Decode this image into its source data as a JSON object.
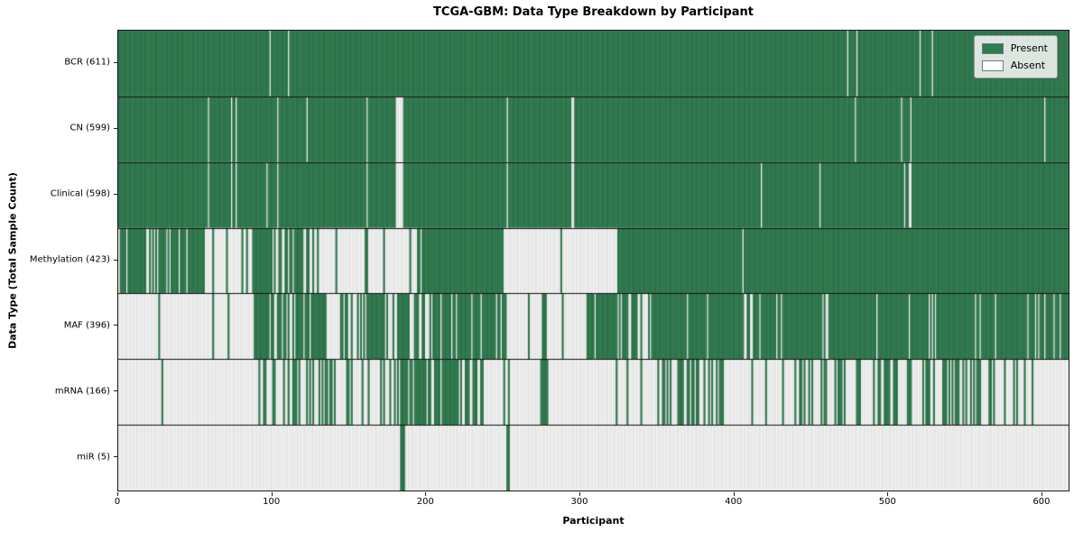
{
  "title": "TCGA-GBM: Data Type Breakdown by Participant",
  "x_axis": {
    "label": "Participant",
    "ticks": [
      0,
      100,
      200,
      300,
      400,
      500,
      600
    ]
  },
  "y_axis": {
    "label": "Data Type (Total Sample Count)"
  },
  "legend": {
    "items": [
      {
        "label": "Present",
        "color": "#2e7d4f"
      },
      {
        "label": "Absent",
        "color": "#ffffff"
      }
    ]
  },
  "colors": {
    "present": "#2e7d4f",
    "absent": "#ffffff",
    "bar_edge": "rgba(40,40,40,0.28)",
    "separator": "#111111",
    "legend_bg": "rgba(236,239,236,0.92)"
  },
  "chart_data": {
    "type": "heatmap",
    "title": "TCGA-GBM: Data Type Breakdown by Participant",
    "xlabel": "Participant",
    "ylabel": "Data Type (Total Sample Count)",
    "x_range": [
      0,
      617
    ],
    "n_participants": 617,
    "legend_position": "upper right",
    "legend_entries": [
      "Present",
      "Absent"
    ],
    "value_encoding": {
      "present": 1,
      "absent": 0
    },
    "rows": [
      {
        "label": "BCR (611)",
        "name": "BCR",
        "total_present": 611,
        "mode": "present_except",
        "absent_at": [
          98,
          110,
          473,
          479,
          520,
          528
        ]
      },
      {
        "label": "CN (599)",
        "name": "CN",
        "total_present": 599,
        "mode": "present_except",
        "absent_at": [
          58,
          73,
          76,
          103,
          122,
          161,
          180,
          181,
          182,
          183,
          184,
          252,
          294,
          295,
          478,
          508,
          514,
          601
        ]
      },
      {
        "label": "Clinical (598)",
        "name": "Clinical",
        "total_present": 598,
        "mode": "present_except",
        "absent_at": [
          58,
          73,
          76,
          96,
          103,
          161,
          180,
          181,
          182,
          183,
          184,
          252,
          294,
          295,
          417,
          455,
          510,
          513,
          514
        ]
      },
      {
        "label": "Methylation (423)",
        "name": "Methylation",
        "total_present": 423,
        "mode": "segments",
        "segments": [
          [
            0,
            55,
            0.78
          ],
          [
            55,
            87,
            0.15
          ],
          [
            87,
            100,
            0.9
          ],
          [
            100,
            108,
            0.3
          ],
          [
            108,
            123,
            0.9
          ],
          [
            123,
            194,
            0.12
          ],
          [
            194,
            250,
            0.96
          ],
          [
            250,
            304,
            0.06
          ],
          [
            304,
            324,
            0.0
          ],
          [
            324,
            405,
            1.0
          ],
          [
            405,
            406,
            0.0
          ],
          [
            406,
            617,
            1.0
          ]
        ]
      },
      {
        "label": "MAF (396)",
        "name": "MAF",
        "total_present": 396,
        "mode": "segments",
        "segments": [
          [
            0,
            18,
            0.0
          ],
          [
            18,
            32,
            0.2
          ],
          [
            32,
            87,
            0.02
          ],
          [
            87,
            100,
            0.85
          ],
          [
            100,
            123,
            0.5
          ],
          [
            123,
            135,
            0.8
          ],
          [
            135,
            145,
            0.05
          ],
          [
            145,
            152,
            0.9
          ],
          [
            152,
            157,
            0.1
          ],
          [
            157,
            173,
            0.85
          ],
          [
            173,
            181,
            0.2
          ],
          [
            181,
            189,
            0.9
          ],
          [
            189,
            202,
            0.3
          ],
          [
            202,
            252,
            0.93
          ],
          [
            252,
            275,
            0.05
          ],
          [
            275,
            278,
            0.9
          ],
          [
            278,
            304,
            0.05
          ],
          [
            304,
            337,
            0.85
          ],
          [
            337,
            346,
            0.15
          ],
          [
            346,
            617,
            0.92
          ]
        ]
      },
      {
        "label": "mRNA (166)",
        "name": "mRNA",
        "total_present": 166,
        "mode": "segments",
        "segments": [
          [
            0,
            25,
            0.0
          ],
          [
            25,
            33,
            0.25
          ],
          [
            33,
            90,
            0.0
          ],
          [
            90,
            96,
            0.8
          ],
          [
            96,
            137,
            0.3
          ],
          [
            137,
            152,
            0.4
          ],
          [
            152,
            170,
            0.15
          ],
          [
            170,
            183,
            0.5
          ],
          [
            183,
            196,
            0.7
          ],
          [
            196,
            204,
            0.5
          ],
          [
            204,
            237,
            0.65
          ],
          [
            237,
            250,
            0.05
          ],
          [
            250,
            254,
            0.5
          ],
          [
            254,
            274,
            0.02
          ],
          [
            274,
            279,
            0.8
          ],
          [
            279,
            305,
            0.02
          ],
          [
            305,
            330,
            0.05
          ],
          [
            330,
            350,
            0.1
          ],
          [
            350,
            378,
            0.6
          ],
          [
            378,
            398,
            0.3
          ],
          [
            398,
            428,
            0.12
          ],
          [
            428,
            482,
            0.35
          ],
          [
            482,
            562,
            0.45
          ],
          [
            562,
            590,
            0.25
          ],
          [
            590,
            617,
            0.05
          ]
        ]
      },
      {
        "label": "miR (5)",
        "name": "miR",
        "total_present": 5,
        "mode": "absent_except",
        "present_at": [
          183,
          184,
          185,
          252,
          253
        ]
      }
    ]
  }
}
